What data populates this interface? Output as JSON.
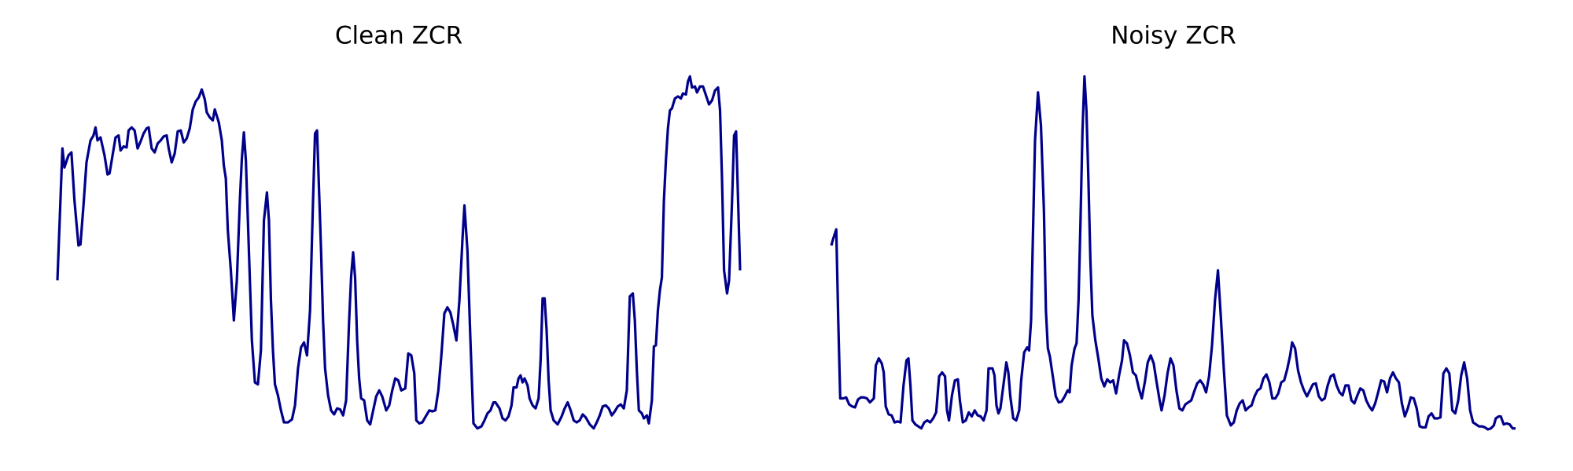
{
  "chart_data": [
    {
      "type": "line",
      "title": "Clean ZCR",
      "color": "#00008b",
      "xlim": [
        0,
        681
      ],
      "ylim": [
        0,
        380
      ],
      "x": [
        0,
        5,
        7,
        11,
        14,
        17,
        21,
        23,
        26,
        29,
        33,
        36,
        38,
        40,
        43,
        47,
        50,
        52,
        55,
        58,
        61,
        63,
        66,
        69,
        71,
        74,
        77,
        80,
        83,
        86,
        89,
        91,
        94,
        97,
        100,
        103,
        106,
        109,
        111,
        114,
        117,
        120,
        123,
        126,
        129,
        132,
        135,
        138,
        141,
        144,
        147,
        149,
        152,
        155,
        157,
        161,
        164,
        166,
        168,
        170,
        173,
        176,
        179,
        182,
        184,
        186,
        188,
        191,
        194,
        197,
        200,
        203,
        206,
        209,
        211,
        213,
        215,
        217,
        220,
        223,
        226,
        230,
        234,
        237,
        240,
        243,
        246,
        249,
        252,
        255,
        257,
        259,
        261,
        263,
        265,
        267,
        270,
        273,
        276,
        279,
        282,
        285,
        288,
        291,
        293,
        295,
        297,
        299,
        301,
        303,
        306,
        309,
        312,
        315,
        318,
        321,
        324,
        328,
        331,
        334,
        337,
        340,
        343,
        347,
        350,
        353,
        356,
        358,
        361,
        364,
        368,
        371,
        374,
        377,
        380,
        383,
        386,
        389,
        392,
        395,
        398,
        401,
        404,
        406,
        409,
        412,
        415,
        419,
        423,
        426,
        429,
        432,
        435,
        437,
        441,
        444,
        447,
        450,
        453,
        455,
        458,
        460,
        462,
        464,
        466,
        469,
        471,
        474,
        477,
        480,
        482,
        484,
        486,
        488,
        490,
        492,
        495,
        499,
        503,
        506,
        509,
        512,
        515,
        518,
        521,
        524,
        527,
        531,
        535,
        538,
        541,
        544,
        547,
        550,
        553,
        556,
        559,
        562,
        565,
        568,
        571,
        574,
        576,
        578,
        580,
        583,
        585,
        588,
        590,
        593,
        595,
        597,
        599,
        601,
        603,
        605,
        607,
        609,
        611,
        613,
        616,
        619,
        622,
        624,
        627,
        629,
        631,
        633,
        636,
        638,
        641,
        644,
        647,
        650,
        653,
        656,
        659,
        661,
        663,
        665,
        668,
        670,
        673,
        675,
        677,
        679,
        681
      ],
      "values": [
        160,
        292,
        273,
        285,
        288,
        240,
        195,
        196,
        235,
        278,
        300,
        305,
        313,
        300,
        303,
        285,
        266,
        267,
        285,
        303,
        305,
        290,
        294,
        293,
        310,
        313,
        310,
        292,
        299,
        307,
        312,
        313,
        292,
        288,
        297,
        300,
        304,
        305,
        292,
        278,
        287,
        309,
        310,
        298,
        302,
        312,
        331,
        339,
        343,
        351,
        341,
        328,
        323,
        320,
        331,
        318,
        300,
        275,
        262,
        210,
        170,
        120,
        160,
        240,
        282,
        308,
        280,
        190,
        100,
        58,
        56,
        90,
        220,
        248,
        220,
        140,
        90,
        56,
        45,
        30,
        18,
        18,
        21,
        35,
        72,
        93,
        98,
        85,
        130,
        240,
        307,
        310,
        250,
        190,
        120,
        72,
        45,
        30,
        26,
        32,
        31,
        25,
        40,
        120,
        164,
        188,
        162,
        100,
        62,
        42,
        40,
        20,
        16,
        30,
        44,
        50,
        44,
        30,
        35,
        50,
        62,
        60,
        50,
        52,
        87,
        85,
        67,
        20,
        17,
        18,
        25,
        30,
        29,
        30,
        50,
        85,
        127,
        133,
        128,
        115,
        100,
        140,
        200,
        235,
        190,
        100,
        17,
        12,
        14,
        20,
        27,
        30,
        38,
        38,
        32,
        22,
        20,
        24,
        35,
        53,
        53,
        62,
        65,
        58,
        62,
        55,
        42,
        35,
        32,
        42,
        80,
        142,
        142,
        110,
        60,
        30,
        20,
        16,
        24,
        32,
        38,
        30,
        20,
        18,
        20,
        26,
        23,
        16,
        12,
        18,
        25,
        34,
        35,
        32,
        25,
        29,
        34,
        36,
        32,
        50,
        144,
        147,
        120,
        70,
        30,
        27,
        22,
        25,
        17,
        40,
        94,
        95,
        130,
        150,
        163,
        240,
        280,
        312,
        330,
        332,
        342,
        344,
        342,
        347,
        346,
        359,
        364,
        353,
        354,
        348,
        354,
        354,
        345,
        336,
        340,
        350,
        353,
        330,
        260,
        170,
        147,
        160,
        240,
        305,
        309,
        240,
        170
      ]
    },
    {
      "type": "line",
      "title": "Noisy ZCR",
      "color": "#00008b",
      "xlim": [
        0,
        692
      ],
      "ylim": [
        0,
        380
      ],
      "x": [
        0,
        2,
        5,
        7,
        9,
        12,
        15,
        18,
        21,
        24,
        27,
        30,
        33,
        36,
        39,
        43,
        45,
        48,
        51,
        53,
        55,
        58,
        61,
        64,
        67,
        70,
        73,
        76,
        78,
        80,
        82,
        85,
        88,
        91,
        94,
        97,
        100,
        103,
        106,
        109,
        112,
        115,
        117,
        119,
        122,
        125,
        128,
        130,
        133,
        136,
        139,
        142,
        145,
        148,
        151,
        154,
        157,
        159,
        161,
        163,
        165,
        167,
        169,
        171,
        174,
        177,
        179,
        181,
        184,
        187,
        190,
        192,
        195,
        198,
        200,
        202,
        204,
        206,
        209,
        212,
        215,
        217,
        219,
        221,
        224,
        227,
        230,
        233,
        236,
        239,
        241,
        243,
        246,
        248,
        250,
        252,
        254,
        256,
        258,
        260,
        262,
        264,
        267,
        270,
        273,
        276,
        279,
        282,
        285,
        288,
        291,
        294,
        296,
        299,
        302,
        305,
        308,
        311,
        314,
        317,
        320,
        323,
        326,
        329,
        332,
        334,
        337,
        340,
        343,
        346,
        349,
        352,
        355,
        358,
        361,
        364,
        367,
        370,
        373,
        376,
        379,
        382,
        385,
        388,
        391,
        394,
        397,
        400,
        404,
        407,
        410,
        413,
        416,
        419,
        422,
        425,
        428,
        431,
        434,
        437,
        440,
        443,
        446,
        449,
        452,
        455,
        458,
        461,
        464,
        466,
        469,
        472,
        475,
        478,
        481,
        484,
        487,
        490,
        493,
        496,
        499,
        502,
        505,
        508,
        511,
        514,
        517,
        520,
        523,
        526,
        529,
        532,
        535,
        538,
        541,
        544,
        547,
        550,
        553,
        556,
        559,
        562,
        565,
        568,
        571,
        574,
        577,
        580,
        583,
        586,
        589,
        592,
        595,
        598,
        601,
        604,
        607,
        610,
        613,
        616,
        619,
        622,
        625,
        628,
        631,
        634,
        637,
        640,
        643,
        646,
        649,
        652,
        655,
        658,
        661,
        664,
        667,
        670,
        672,
        675,
        677,
        680,
        683,
        686,
        689,
        692
      ],
      "values": [
        195,
        202,
        211,
        120,
        42,
        42,
        43,
        36,
        34,
        33,
        41,
        43,
        43,
        42,
        38,
        42,
        75,
        82,
        77,
        68,
        34,
        26,
        25,
        18,
        19,
        18,
        55,
        80,
        82,
        55,
        20,
        16,
        14,
        12,
        18,
        20,
        18,
        22,
        28,
        64,
        68,
        64,
        30,
        20,
        45,
        60,
        61,
        40,
        18,
        20,
        28,
        24,
        30,
        25,
        24,
        20,
        30,
        72,
        72,
        72,
        65,
        35,
        27,
        32,
        55,
        78,
        68,
        44,
        22,
        20,
        30,
        60,
        88,
        93,
        90,
        120,
        210,
        300,
        348,
        315,
        230,
        130,
        92,
        84,
        64,
        44,
        38,
        39,
        44,
        50,
        48,
        75,
        92,
        97,
        140,
        220,
        310,
        364,
        330,
        260,
        180,
        125,
        100,
        82,
        62,
        54,
        61,
        58,
        60,
        47,
        65,
        80,
        100,
        97,
        85,
        68,
        65,
        52,
        42,
        58,
        78,
        85,
        77,
        58,
        40,
        30,
        45,
        67,
        82,
        75,
        50,
        32,
        30,
        36,
        38,
        40,
        49,
        57,
        60,
        56,
        48,
        64,
        95,
        140,
        170,
        122,
        70,
        25,
        15,
        18,
        30,
        37,
        40,
        30,
        33,
        35,
        44,
        50,
        52,
        62,
        66,
        58,
        42,
        42,
        47,
        58,
        60,
        71,
        85,
        98,
        92,
        70,
        58,
        50,
        44,
        50,
        56,
        57,
        44,
        40,
        42,
        55,
        64,
        66,
        55,
        48,
        45,
        55,
        55,
        40,
        37,
        45,
        52,
        50,
        40,
        34,
        30,
        37,
        48,
        60,
        59,
        48,
        62,
        68,
        62,
        58,
        37,
        24,
        32,
        43,
        42,
        32,
        14,
        13,
        13,
        24,
        27,
        22,
        22,
        23,
        67,
        72,
        67,
        30,
        27,
        40,
        65,
        78,
        62,
        30,
        18,
        16,
        14,
        14,
        13,
        11,
        12,
        15,
        22,
        24,
        24,
        16,
        17,
        16,
        12,
        12
      ]
    }
  ]
}
